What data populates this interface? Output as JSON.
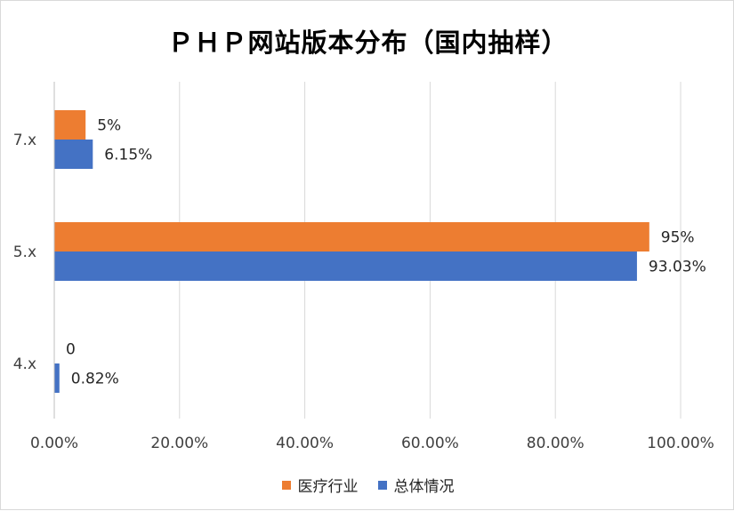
{
  "chart_data": {
    "type": "bar",
    "orientation": "horizontal",
    "title": "ＰＨＰ网站版本分布（国内抽样）",
    "categories": [
      "7.x",
      "5.x",
      "4.x"
    ],
    "series": [
      {
        "name": "医疗行业",
        "color": "#ED7D31",
        "values": [
          5,
          95,
          0
        ],
        "labels": [
          "5%",
          "95%",
          "0"
        ]
      },
      {
        "name": "总体情况",
        "color": "#4472C4",
        "values": [
          6.15,
          93.03,
          0.82
        ],
        "labels": [
          "6.15%",
          "93.03%",
          "0.82%"
        ]
      }
    ],
    "x_ticks": [
      "0.00%",
      "20.00%",
      "40.00%",
      "60.00%",
      "80.00%",
      "100.00%"
    ],
    "xlim": [
      0,
      100
    ],
    "grid": true,
    "legend": "bottom",
    "gridline_color": "#d9d9d9"
  }
}
